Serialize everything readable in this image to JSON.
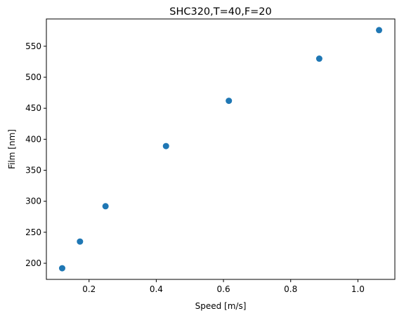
{
  "chart_data": {
    "type": "scatter",
    "title": "SHC320,T=40,F=20",
    "xlabel": "Speed [m/s]",
    "ylabel": "Film [nm]",
    "xlim": [
      0.073,
      1.11
    ],
    "ylim": [
      174,
      594
    ],
    "xticks": [
      0.2,
      0.4,
      0.6,
      0.8,
      1.0
    ],
    "xtick_labels": [
      "0.2",
      "0.4",
      "0.6",
      "0.8",
      "1.0"
    ],
    "yticks": [
      200,
      250,
      300,
      350,
      400,
      450,
      500,
      550
    ],
    "ytick_labels": [
      "200",
      "250",
      "300",
      "350",
      "400",
      "450",
      "500",
      "550"
    ],
    "grid": false,
    "legend": false,
    "series": [
      {
        "color": "#1f77b4",
        "x": [
          0.12,
          0.173,
          0.249,
          0.429,
          0.616,
          0.885,
          1.063
        ],
        "y": [
          192,
          235,
          292,
          389,
          462,
          530,
          576
        ]
      }
    ]
  }
}
